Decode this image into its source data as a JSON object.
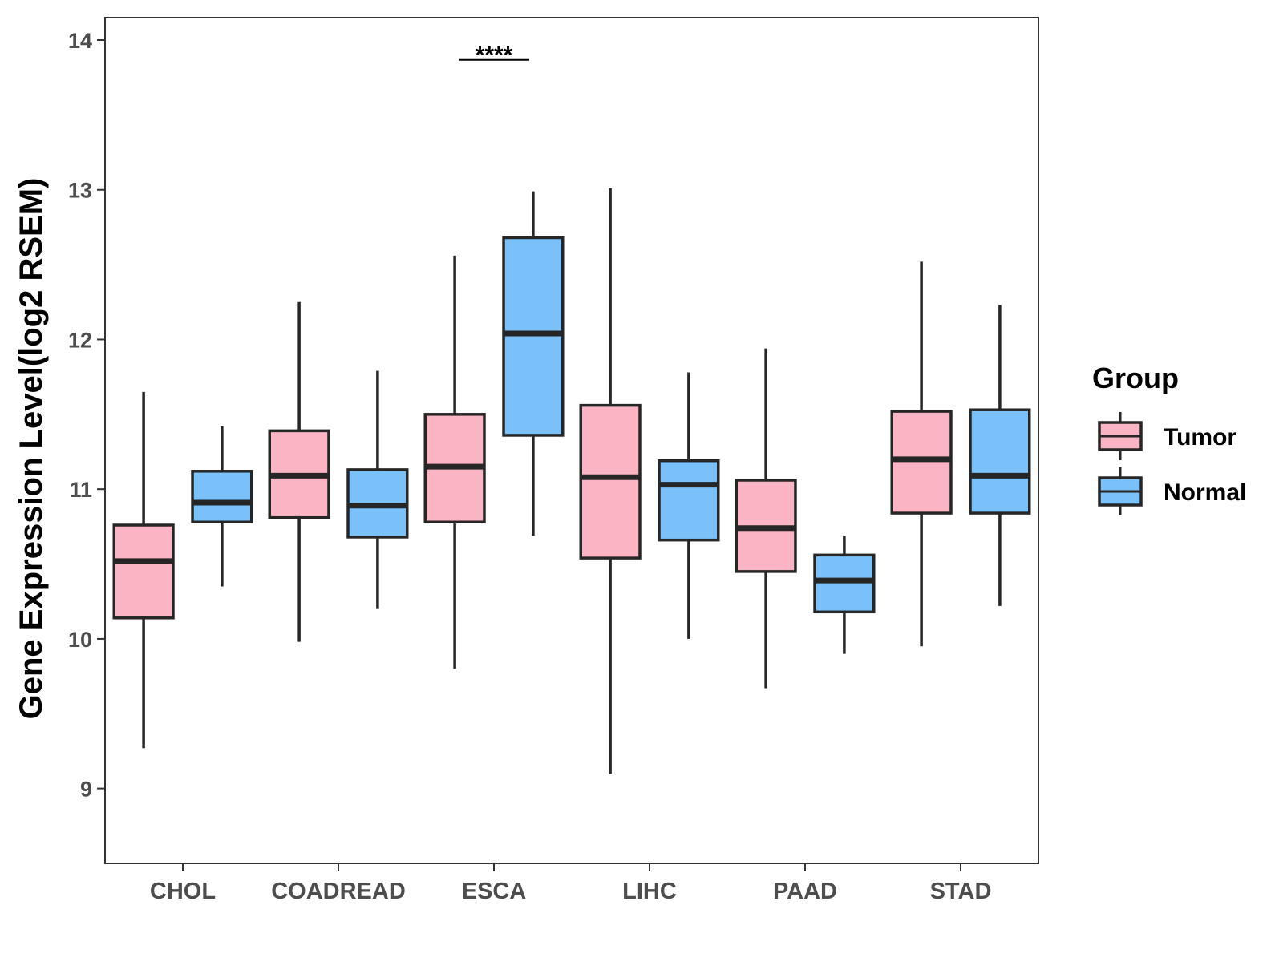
{
  "chart_data": {
    "type": "boxplot",
    "title": "",
    "xlabel": "",
    "ylabel": "Gene Expression Level(log2 RSEM)",
    "ylim": [
      8.5,
      14.15
    ],
    "yticks": [
      9,
      10,
      11,
      12,
      13,
      14
    ],
    "grid": false,
    "legend_position": "right",
    "legend_title": "Group",
    "categories": [
      "CHOL",
      "COADREAD",
      "ESCA",
      "LIHC",
      "PAAD",
      "STAD"
    ],
    "series": [
      {
        "name": "Tumor",
        "color": "#FBB4C4",
        "boxes": [
          {
            "min": 9.27,
            "q1": 10.14,
            "median": 10.52,
            "q3": 10.76,
            "max": 11.65
          },
          {
            "min": 9.98,
            "q1": 10.81,
            "median": 11.09,
            "q3": 11.39,
            "max": 12.25
          },
          {
            "min": 9.8,
            "q1": 10.78,
            "median": 11.15,
            "q3": 11.5,
            "max": 12.56
          },
          {
            "min": 9.1,
            "q1": 10.54,
            "median": 11.08,
            "q3": 11.56,
            "max": 13.01
          },
          {
            "min": 9.67,
            "q1": 10.45,
            "median": 10.74,
            "q3": 11.06,
            "max": 11.94
          },
          {
            "min": 9.95,
            "q1": 10.84,
            "median": 11.2,
            "q3": 11.52,
            "max": 12.52
          }
        ]
      },
      {
        "name": "Normal",
        "color": "#79C1F8",
        "boxes": [
          {
            "min": 10.35,
            "q1": 10.78,
            "median": 10.91,
            "q3": 11.12,
            "max": 11.42
          },
          {
            "min": 10.2,
            "q1": 10.68,
            "median": 10.89,
            "q3": 11.13,
            "max": 11.79
          },
          {
            "min": 10.69,
            "q1": 11.36,
            "median": 12.04,
            "q3": 12.68,
            "max": 12.99
          },
          {
            "min": 10.0,
            "q1": 10.66,
            "median": 11.03,
            "q3": 11.19,
            "max": 11.78
          },
          {
            "min": 9.9,
            "q1": 10.18,
            "median": 10.39,
            "q3": 10.56,
            "max": 10.69
          },
          {
            "min": 10.22,
            "q1": 10.84,
            "median": 11.09,
            "q3": 11.53,
            "max": 12.23
          }
        ]
      }
    ],
    "annotations": [
      {
        "category": "ESCA",
        "text": "****",
        "y": 13.87
      }
    ]
  }
}
